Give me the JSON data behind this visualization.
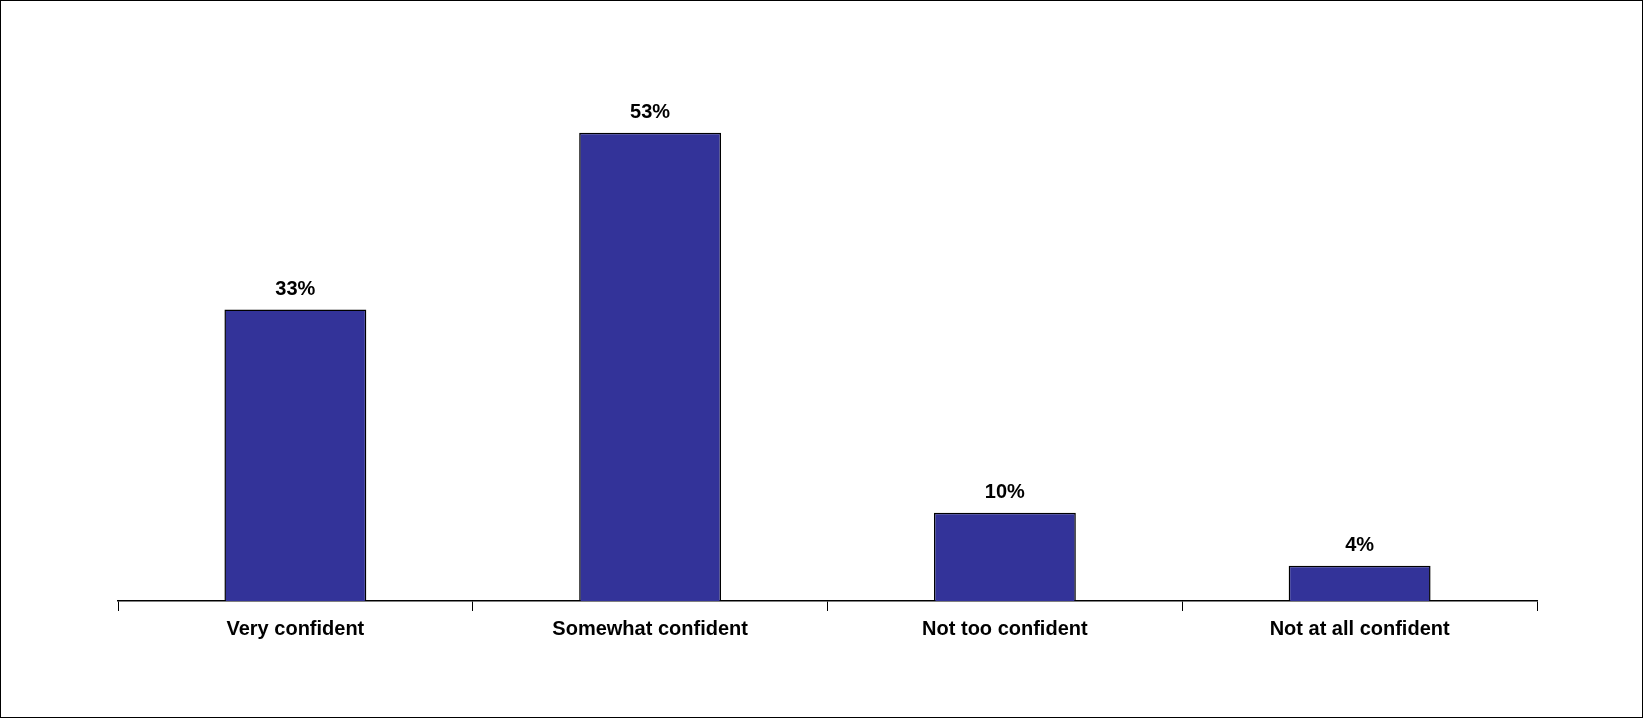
{
  "chart_data": {
    "type": "bar",
    "categories": [
      "Very confident",
      "Somewhat confident",
      "Not too confident",
      "Not at all confident"
    ],
    "values": [
      33,
      53,
      10,
      4
    ],
    "value_labels": [
      "33%",
      "53%",
      "10%",
      "4%"
    ],
    "color": "#333399",
    "grid": false,
    "legend": false
  }
}
